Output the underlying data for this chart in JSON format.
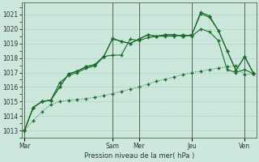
{
  "background_color": "#cce8dc",
  "grid_color": "#b0d4c4",
  "line_color": "#1a6b2a",
  "xlabel": "Pression niveau de la mer( hPa )",
  "ylim": [
    1012.5,
    1021.8
  ],
  "yticks": [
    1013,
    1014,
    1015,
    1016,
    1017,
    1018,
    1019,
    1020,
    1021
  ],
  "day_labels": [
    "Mar",
    "Sam",
    "Mer",
    "Jeu",
    "Ven"
  ],
  "day_x": [
    0,
    10,
    13,
    19,
    25
  ],
  "n_points": 27,
  "series": [
    [
      1013.0,
      1013.7,
      1014.3,
      1014.8,
      1015.0,
      1015.1,
      1015.15,
      1015.2,
      1015.3,
      1015.4,
      1015.55,
      1015.7,
      1015.85,
      1016.0,
      1016.2,
      1016.4,
      1016.55,
      1016.7,
      1016.85,
      1017.0,
      1017.1,
      1017.2,
      1017.3,
      1017.4,
      1017.45,
      1016.85,
      1016.9
    ],
    [
      1013.0,
      1014.6,
      1015.0,
      1015.1,
      1016.3,
      1016.8,
      1017.0,
      1017.3,
      1017.45,
      1018.1,
      1018.2,
      1018.2,
      1019.3,
      1019.2,
      1019.4,
      1019.5,
      1019.5,
      1019.5,
      1019.6,
      1019.5,
      1020.0,
      1019.8,
      1019.2,
      1017.2,
      1017.0,
      1017.2,
      1016.9
    ],
    [
      1013.0,
      1014.6,
      1015.0,
      1015.1,
      1016.0,
      1016.9,
      1017.1,
      1017.4,
      1017.55,
      1018.1,
      1019.35,
      1019.15,
      1019.0,
      1019.3,
      1019.6,
      1019.5,
      1019.6,
      1019.6,
      1019.5,
      1019.6,
      1021.15,
      1020.9,
      1019.9,
      1018.5,
      1017.15,
      1018.1,
      1016.9
    ],
    [
      1013.0,
      1014.6,
      1015.0,
      1015.1,
      1016.0,
      1016.9,
      1017.1,
      1017.4,
      1017.55,
      1018.1,
      1019.3,
      1019.15,
      1019.0,
      1019.3,
      1019.6,
      1019.5,
      1019.6,
      1019.6,
      1019.5,
      1019.6,
      1021.05,
      1020.8,
      1019.9,
      1018.5,
      1017.15,
      1018.1,
      1016.95
    ]
  ]
}
